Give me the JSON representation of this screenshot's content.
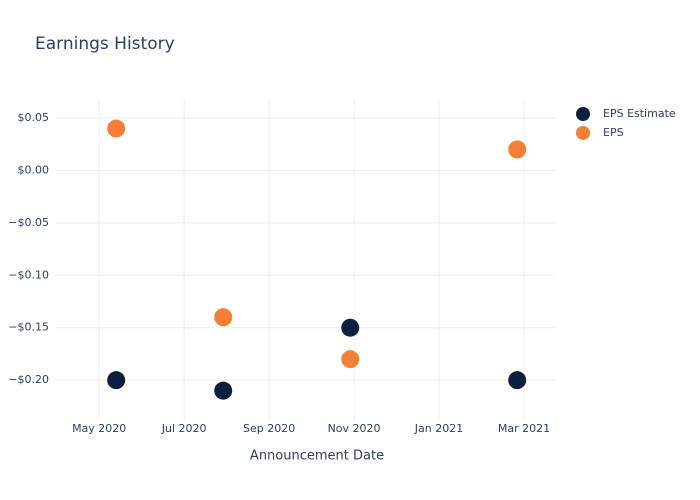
{
  "chart_data": {
    "type": "scatter",
    "title": "Earnings History",
    "x_label": "Announcement Date",
    "x": [
      5.4,
      7.92,
      10.91,
      14.84
    ],
    "series": [
      {
        "name": "EPS Estimate",
        "color": "#0c1f3f",
        "values": [
          -0.2,
          -0.21,
          -0.15,
          -0.2
        ]
      },
      {
        "name": "EPS",
        "color": "#f47f37",
        "values": [
          0.04,
          -0.14,
          -0.18,
          0.02
        ]
      }
    ],
    "xlim": [
      3.96,
      15.73
    ],
    "xticks": [
      {
        "value": 5,
        "label": "May 2020"
      },
      {
        "value": 7,
        "label": "Jul 2020"
      },
      {
        "value": 9,
        "label": "Sep 2020"
      },
      {
        "value": 11,
        "label": "Nov 2020"
      },
      {
        "value": 13,
        "label": "Jan 2021"
      },
      {
        "value": 15,
        "label": "Mar 2021"
      }
    ],
    "ylim": [
      -0.238,
      0.0672
    ],
    "yticks": [
      {
        "value": 0.05,
        "label": "$0.05"
      },
      {
        "value": 0,
        "label": "$0.00"
      },
      {
        "value": -0.05,
        "label": "−$0.05"
      },
      {
        "value": -0.1,
        "label": "−$0.10"
      },
      {
        "value": -0.15,
        "label": "−$0.15"
      },
      {
        "value": -0.2,
        "label": "−$0.20"
      }
    ],
    "grid": true,
    "legend": "top-right"
  }
}
